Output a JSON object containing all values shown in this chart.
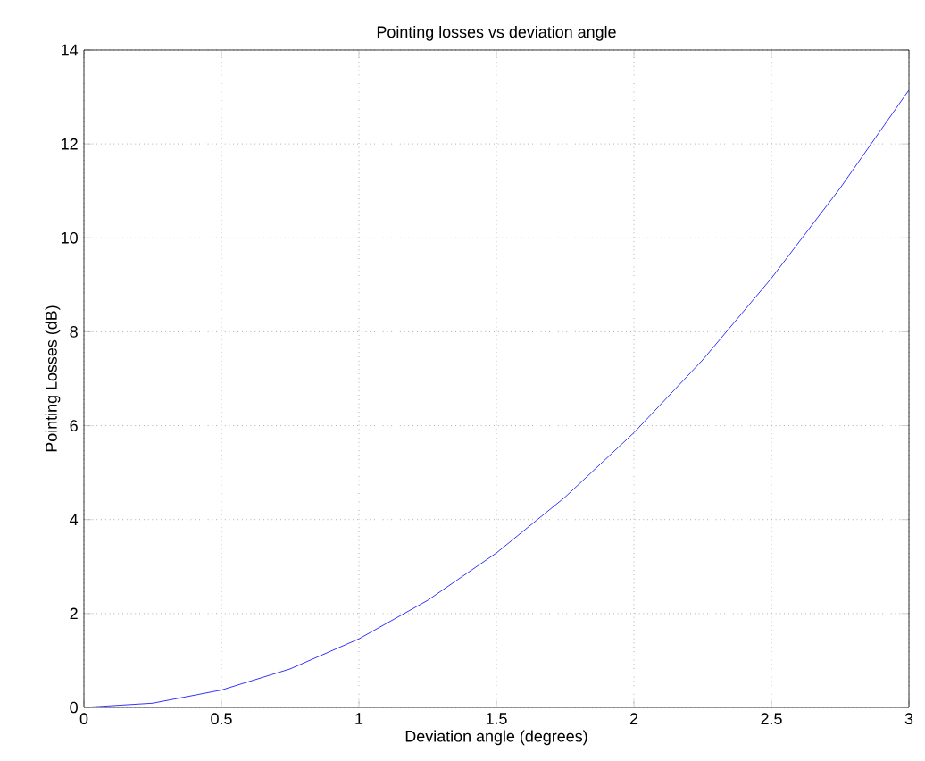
{
  "chart_data": {
    "type": "line",
    "title": "Pointing losses vs deviation angle",
    "xlabel": "Deviation angle (degrees)",
    "ylabel": "Pointing Losses (dB)",
    "x": [
      0,
      0.25,
      0.5,
      0.75,
      1,
      1.25,
      1.5,
      1.75,
      2,
      2.25,
      2.5,
      2.75,
      3
    ],
    "series": [
      {
        "color": "#0000ff",
        "values": [
          0,
          0.09,
          0.37,
          0.82,
          1.46,
          2.28,
          3.29,
          4.48,
          5.85,
          7.4,
          9.14,
          11.06,
          13.15
        ]
      }
    ],
    "xlim": [
      0,
      3
    ],
    "ylim": [
      0,
      14
    ],
    "xticks": [
      0,
      0.5,
      1,
      1.5,
      2,
      2.5,
      3
    ],
    "yticks": [
      0,
      2,
      4,
      6,
      8,
      10,
      12,
      14
    ],
    "grid": true,
    "marker": "none",
    "line_style": "solid"
  }
}
